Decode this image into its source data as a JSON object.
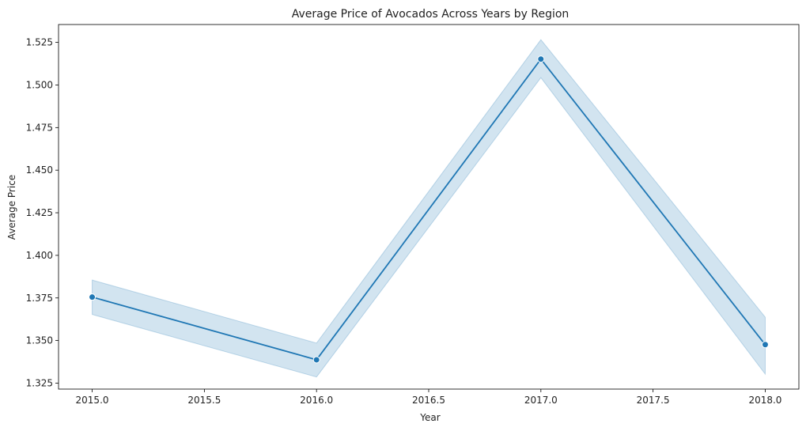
{
  "chart_data": {
    "type": "line",
    "title": "Average Price of Avocados Across Years by Region",
    "xlabel": "Year",
    "ylabel": "Average Price",
    "xlim": [
      2014.85,
      2018.15
    ],
    "ylim": [
      1.3215,
      1.5355
    ],
    "xticks": [
      2015.0,
      2015.5,
      2016.0,
      2016.5,
      2017.0,
      2017.5,
      2018.0
    ],
    "xtick_labels": [
      "2015.0",
      "2015.5",
      "2016.0",
      "2016.5",
      "2017.0",
      "2017.5",
      "2018.0"
    ],
    "yticks": [
      1.325,
      1.35,
      1.375,
      1.4,
      1.425,
      1.45,
      1.475,
      1.5,
      1.525
    ],
    "ytick_labels": [
      "1.325",
      "1.350",
      "1.375",
      "1.400",
      "1.425",
      "1.450",
      "1.475",
      "1.500",
      "1.525"
    ],
    "grid": false,
    "series": [
      {
        "x": [
          2015,
          2016,
          2017,
          2018
        ],
        "y": [
          1.3755,
          1.3387,
          1.5152,
          1.3476
        ],
        "ci_lower": [
          1.3653,
          1.3286,
          1.5043,
          1.3303
        ],
        "ci_upper": [
          1.3855,
          1.3485,
          1.5266,
          1.3637
        ],
        "color": "#1f77b4",
        "band_color": "#1f77b4",
        "marker": "circle"
      }
    ]
  }
}
